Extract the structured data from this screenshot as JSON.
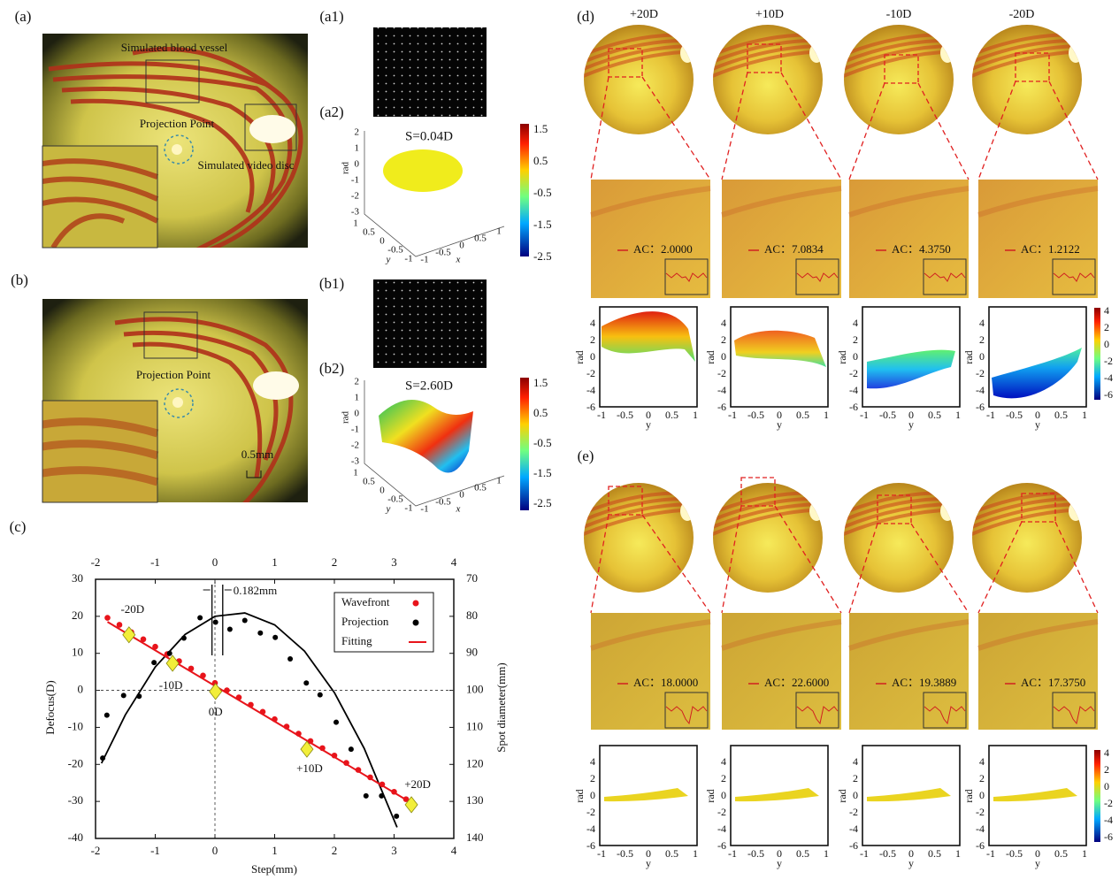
{
  "figure": {
    "panel_labels": {
      "a": "(a)",
      "a1": "(a1)",
      "a2": "(a2)",
      "b": "(b)",
      "b1": "(b1)",
      "b2": "(b2)",
      "c": "(c)",
      "d": "(d)",
      "e": "(e)"
    },
    "a_notes": [
      "Simulated blood vessel",
      "Projection Point",
      "Simulated  video disc"
    ],
    "b_notes": [
      "Projection Point",
      "0.5mm"
    ],
    "a2_title": "S=0.04D",
    "b2_title": "S=2.60D",
    "surface3d": {
      "zlabel": "rad",
      "zticks": [
        "2",
        "1",
        "0",
        "-1",
        "-2",
        "-3"
      ],
      "yticks": [
        "1",
        "0.5",
        "0",
        "-0.5",
        "-1"
      ],
      "xticks": [
        "-1",
        "-0.5",
        "0",
        "0.5",
        "1"
      ],
      "ylabel": "y",
      "xlabel": "x"
    },
    "colorbar_ab": [
      "1.5",
      "0.5",
      "-0.5",
      "-1.5",
      "-2.5"
    ],
    "defocus": [
      "+20D",
      "+10D",
      "-10D",
      "-20D"
    ],
    "d_ac": [
      "AC：2.0000",
      "AC：7.0834",
      "AC：4.3750",
      "AC：1.2122"
    ],
    "e_ac": [
      "AC：18.0000",
      "AC：22.6000",
      "AC：19.3889",
      "AC：17.3750"
    ],
    "profile": {
      "ylabel": "rad",
      "xlabel": "y",
      "yticks": [
        "4",
        "2",
        "0",
        "-2",
        "-4",
        "-6"
      ],
      "xticks": [
        "-1",
        "-0.5",
        "0",
        "0.5",
        "1"
      ]
    },
    "colorbar_de": [
      "4",
      "2",
      "0",
      "-2",
      "-4",
      "-6"
    ]
  },
  "chart_data": {
    "type": "scatter",
    "xlabel": "Step(mm)",
    "ylabel": "Defocus(D)",
    "y2label": "Spot diameter(mm)",
    "ycolor": "#e8141b",
    "xlim": [
      -2,
      4
    ],
    "xticks": [
      -2,
      -1,
      0,
      1,
      2,
      3,
      4
    ],
    "x2lim": [
      -2,
      4
    ],
    "x2ticks": [
      -2,
      -1,
      0,
      1,
      2,
      3,
      4
    ],
    "ylim": [
      -40,
      30
    ],
    "yticks": [
      -40,
      -30,
      -20,
      -10,
      0,
      10,
      20,
      30
    ],
    "y2lim": [
      140,
      70
    ],
    "y2ticks": [
      70,
      80,
      90,
      100,
      110,
      120,
      130,
      140
    ],
    "zero_lines": true,
    "legend": "upper right",
    "series": [
      {
        "name": "Wavefront",
        "color": "#e8141b",
        "axis": "y",
        "marker": "circle",
        "x": [
          -1.8,
          -1.6,
          -1.4,
          -1.2,
          -1.0,
          -0.8,
          -0.6,
          -0.4,
          -0.2,
          0,
          0.2,
          0.4,
          0.6,
          0.8,
          1.0,
          1.2,
          1.4,
          1.6,
          1.8,
          2.0,
          2.2,
          2.4,
          2.6,
          2.8,
          3.0,
          3.2
        ],
        "values": [
          19.6,
          17.7,
          15.7,
          13.8,
          11.8,
          9.8,
          7.9,
          5.9,
          4.0,
          2.0,
          0.0,
          -1.9,
          -3.9,
          -5.8,
          -7.8,
          -9.8,
          -11.7,
          -13.7,
          -15.6,
          -17.6,
          -19.6,
          -21.5,
          -23.5,
          -25.4,
          -27.4,
          -29.4
        ]
      },
      {
        "name": "Projection",
        "color": "#000000",
        "axis": "y2",
        "marker": "circle",
        "x": [
          -1.88,
          -1.81,
          -1.53,
          -1.27,
          -1.02,
          -0.76,
          -0.52,
          -0.25,
          0.01,
          0.25,
          0.5,
          0.76,
          1.01,
          1.26,
          1.53,
          1.76,
          2.03,
          2.28,
          2.53,
          2.79,
          3.04
        ],
        "values": [
          118.3,
          106.7,
          101.4,
          101.6,
          92.5,
          90.0,
          85.9,
          80.4,
          81.6,
          83.5,
          81.1,
          84.5,
          85.7,
          91.5,
          98.0,
          101.2,
          108.6,
          115.9,
          128.5,
          128.5,
          134.0
        ]
      },
      {
        "name": "Fitting",
        "color": "#e8141b",
        "axis": "y",
        "marker": "line",
        "x": [
          -1.8,
          3.3
        ],
        "values": [
          18.5,
          -30.5
        ]
      }
    ],
    "fit_curve": {
      "color": "#000000",
      "axis": "y2",
      "x": [
        -1.9,
        -1.5,
        -1,
        -0.5,
        0,
        0.5,
        1,
        1.5,
        2,
        2.5,
        3.05
      ],
      "values": [
        119.7,
        106.6,
        93.7,
        84.9,
        80,
        79.1,
        82.3,
        89.4,
        100.6,
        115.7,
        137.0
      ]
    },
    "markers": {
      "color": "#f2ee3a",
      "x": [
        -1.44,
        -0.71,
        0.01,
        1.54,
        3.29
      ],
      "values": [
        15.0,
        7.3,
        -0.3,
        -15.9,
        -30.9
      ],
      "labels": [
        "-20D",
        "-10D",
        "0D",
        "+10D",
        "+20D"
      ]
    },
    "offset_lines": [
      -0.05,
      0.13
    ],
    "offset_label": "0.182mm"
  }
}
